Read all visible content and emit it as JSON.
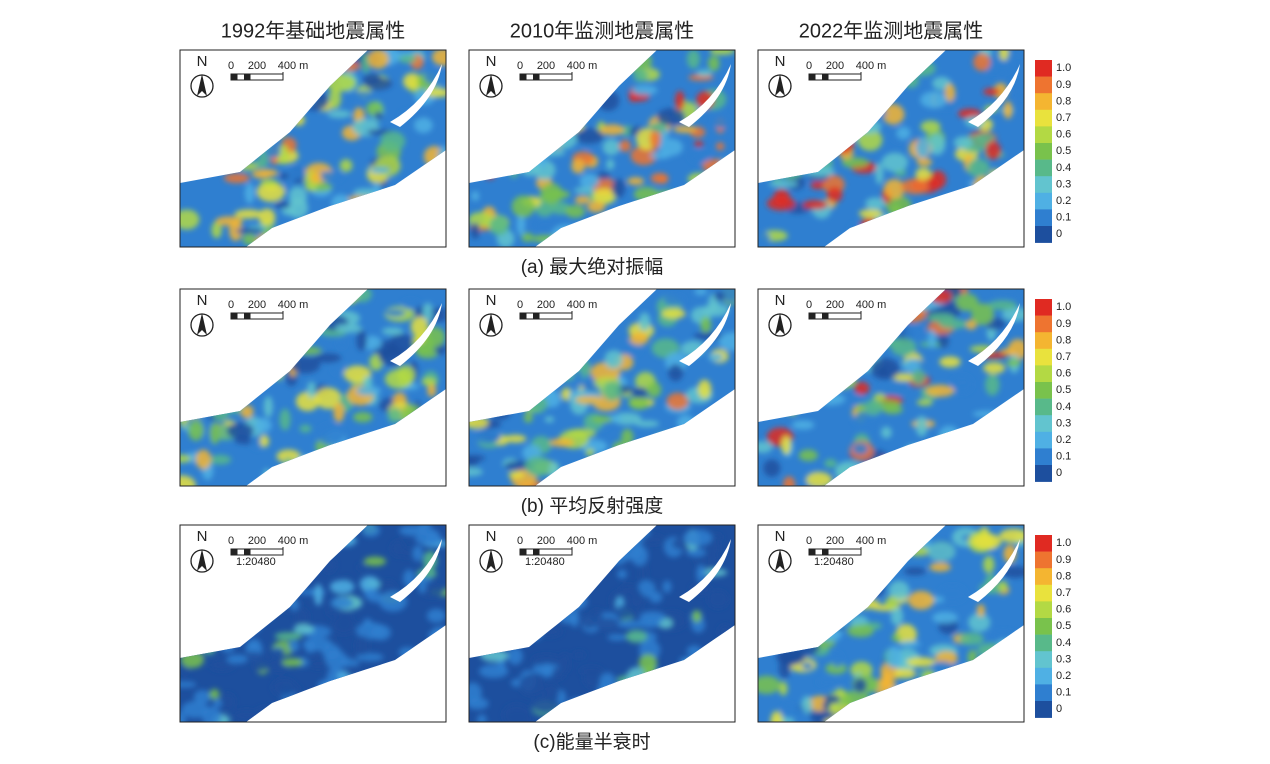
{
  "column_titles": [
    "1992年基础地震属性",
    "2010年监测地震属性",
    "2022年监测地震属性"
  ],
  "rows": [
    {
      "caption": "(a) 最大绝对振幅"
    },
    {
      "caption": "(b) 平均反射强度"
    },
    {
      "caption": "(c)能量半衰时"
    }
  ],
  "colorbar": {
    "labels": [
      "1.0",
      "0.9",
      "0.8",
      "0.7",
      "0.6",
      "0.5",
      "0.4",
      "0.3",
      "0.2",
      "0.1",
      "0"
    ]
  },
  "scale_bar": {
    "north": "N",
    "labels": [
      "0",
      "200",
      "400 m"
    ],
    "ratio": "1:20480"
  }
}
